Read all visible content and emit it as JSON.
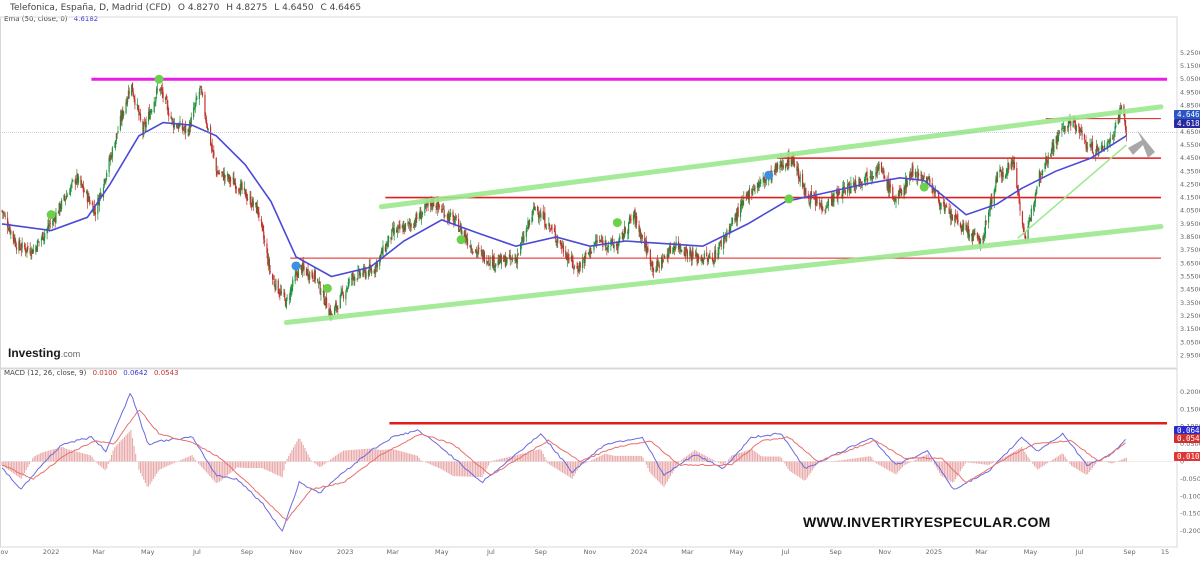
{
  "header": {
    "symbol": "Telefonica, España, D, Madrid (CFD)",
    "open": "O 4.8270",
    "high": "H 4.8275",
    "low": "L 4.6450",
    "close": "C 4.6465",
    "ema_label": "Ema (50, close, 0)",
    "ema_value": "4.6182"
  },
  "macd_header": {
    "label": "MACD (12, 26, close, 9)",
    "hist_value": "0.0100",
    "macd_value": "0.0642",
    "signal_value": "0.0543"
  },
  "brand": {
    "name": "Investing",
    "suffix": ".com"
  },
  "watermark": "WWW.INVERTIRYESPECULAR.COM",
  "price_badges": {
    "last": "4.6465",
    "ema": "4.6182"
  },
  "macd_badges": {
    "macd": "0.0642",
    "signal": "0.0543",
    "hist": "0.0100"
  },
  "colors": {
    "candle_up": "#1e8f3a",
    "candle_down": "#c0312b",
    "ema": "#4a4ad8",
    "channel": "#9be88e",
    "resistance": "#e01e1e",
    "top_line": "#e81ee8",
    "arrow": "#a8a8a8",
    "signal_marker": "#6bd14a",
    "signal_marker_blue": "#3d8fe0",
    "macd_line": "#6b6be0",
    "signal_line": "#e87070",
    "hist_pos": "#e8a8a8",
    "hist_neg": "#e8a8a8",
    "macd_resistance": "#e01e1e"
  },
  "chart_data": [
    {
      "type": "candlestick",
      "title": "Telefonica, España, D, Madrid (CFD)",
      "x_axis": {
        "type": "date",
        "range": [
          "2021-11-01",
          "2025-10-15"
        ],
        "tick_labels": [
          "Nov",
          "2022",
          "Mar",
          "May",
          "Jul",
          "Sep",
          "Nov",
          "2023",
          "Mar",
          "May",
          "Jul",
          "Sep",
          "Nov",
          "2024",
          "Mar",
          "May",
          "Jul",
          "Sep",
          "Nov",
          "2025",
          "Mar",
          "May",
          "Jul",
          "Sep",
          "15"
        ]
      },
      "y_axis": {
        "range": [
          2.9,
          5.5
        ],
        "tick_labels": [
          "5.2500",
          "5.1500",
          "5.0500",
          "4.9500",
          "4.8500",
          "4.7500",
          "4.6500",
          "4.5500",
          "4.4500",
          "4.3500",
          "4.2500",
          "4.1500",
          "4.0500",
          "3.9500",
          "3.8500",
          "3.7500",
          "3.6500",
          "3.5500",
          "3.4500",
          "3.3500",
          "3.2500",
          "3.1500",
          "3.0500",
          "2.9500"
        ]
      },
      "price_path": [
        [
          "2021-11-01",
          4.05
        ],
        [
          "2021-11-20",
          3.78
        ],
        [
          "2021-12-10",
          3.75
        ],
        [
          "2022-01-05",
          4.0
        ],
        [
          "2022-02-01",
          4.3
        ],
        [
          "2022-02-25",
          4.05
        ],
        [
          "2022-03-20",
          4.55
        ],
        [
          "2022-04-10",
          5.02
        ],
        [
          "2022-04-25",
          4.65
        ],
        [
          "2022-05-15",
          5.0
        ],
        [
          "2022-06-01",
          4.72
        ],
        [
          "2022-06-20",
          4.65
        ],
        [
          "2022-07-05",
          4.98
        ],
        [
          "2022-07-25",
          4.35
        ],
        [
          "2022-08-20",
          4.25
        ],
        [
          "2022-09-15",
          4.05
        ],
        [
          "2022-10-01",
          3.55
        ],
        [
          "2022-10-20",
          3.35
        ],
        [
          "2022-11-05",
          3.62
        ],
        [
          "2022-11-25",
          3.55
        ],
        [
          "2022-12-15",
          3.25
        ],
        [
          "2023-01-10",
          3.55
        ],
        [
          "2023-02-05",
          3.6
        ],
        [
          "2023-03-01",
          3.88
        ],
        [
          "2023-03-25",
          3.95
        ],
        [
          "2023-04-20",
          4.12
        ],
        [
          "2023-05-20",
          3.95
        ],
        [
          "2023-06-10",
          3.75
        ],
        [
          "2023-07-05",
          3.66
        ],
        [
          "2023-08-01",
          3.68
        ],
        [
          "2023-08-25",
          4.08
        ],
        [
          "2023-09-20",
          3.85
        ],
        [
          "2023-10-15",
          3.6
        ],
        [
          "2023-11-10",
          3.82
        ],
        [
          "2023-12-05",
          3.78
        ],
        [
          "2023-12-25",
          4.02
        ],
        [
          "2024-01-20",
          3.6
        ],
        [
          "2024-02-15",
          3.8
        ],
        [
          "2024-03-10",
          3.7
        ],
        [
          "2024-04-01",
          3.68
        ],
        [
          "2024-04-25",
          3.95
        ],
        [
          "2024-05-20",
          4.22
        ],
        [
          "2024-06-10",
          4.3
        ],
        [
          "2024-06-25",
          4.4
        ],
        [
          "2024-07-10",
          4.45
        ],
        [
          "2024-07-25",
          4.18
        ],
        [
          "2024-08-15",
          4.08
        ],
        [
          "2024-09-10",
          4.2
        ],
        [
          "2024-10-05",
          4.3
        ],
        [
          "2024-10-25",
          4.38
        ],
        [
          "2024-11-15",
          4.12
        ],
        [
          "2024-12-05",
          4.35
        ],
        [
          "2024-12-25",
          4.28
        ],
        [
          "2025-01-15",
          4.05
        ],
        [
          "2025-02-10",
          3.9
        ],
        [
          "2025-03-01",
          3.8
        ],
        [
          "2025-03-20",
          4.3
        ],
        [
          "2025-04-10",
          4.42
        ],
        [
          "2025-04-25",
          3.8
        ],
        [
          "2025-05-10",
          4.3
        ],
        [
          "2025-05-25",
          4.5
        ],
        [
          "2025-06-10",
          4.68
        ],
        [
          "2025-06-25",
          4.72
        ],
        [
          "2025-07-10",
          4.55
        ],
        [
          "2025-07-25",
          4.5
        ],
        [
          "2025-08-10",
          4.6
        ],
        [
          "2025-08-22",
          4.86
        ],
        [
          "2025-08-28",
          4.65
        ]
      ],
      "ema_path": [
        [
          "2021-11-01",
          3.95
        ],
        [
          "2022-01-01",
          3.9
        ],
        [
          "2022-02-15",
          4.0
        ],
        [
          "2022-03-15",
          4.25
        ],
        [
          "2022-04-20",
          4.62
        ],
        [
          "2022-05-20",
          4.72
        ],
        [
          "2022-06-25",
          4.7
        ],
        [
          "2022-07-25",
          4.62
        ],
        [
          "2022-08-30",
          4.4
        ],
        [
          "2022-10-01",
          4.12
        ],
        [
          "2022-11-01",
          3.7
        ],
        [
          "2022-12-15",
          3.55
        ],
        [
          "2023-02-01",
          3.62
        ],
        [
          "2023-03-15",
          3.82
        ],
        [
          "2023-05-01",
          3.98
        ],
        [
          "2023-06-15",
          3.88
        ],
        [
          "2023-08-01",
          3.78
        ],
        [
          "2023-09-20",
          3.85
        ],
        [
          "2023-11-01",
          3.78
        ],
        [
          "2023-12-15",
          3.82
        ],
        [
          "2024-02-01",
          3.8
        ],
        [
          "2024-03-20",
          3.78
        ],
        [
          "2024-05-15",
          3.95
        ],
        [
          "2024-07-01",
          4.12
        ],
        [
          "2024-08-15",
          4.18
        ],
        [
          "2024-10-05",
          4.25
        ],
        [
          "2024-11-20",
          4.3
        ],
        [
          "2024-12-20",
          4.28
        ],
        [
          "2025-02-10",
          4.02
        ],
        [
          "2025-03-20",
          4.1
        ],
        [
          "2025-04-20",
          4.22
        ],
        [
          "2025-06-01",
          4.35
        ],
        [
          "2025-07-15",
          4.45
        ],
        [
          "2025-08-28",
          4.62
        ]
      ],
      "annotations": {
        "top_line_level": 5.05,
        "resistance_levels": [
          4.45,
          4.15,
          3.69,
          4.75
        ],
        "channel_upper": [
          [
            "2023-02-15",
            4.08
          ],
          [
            "2025-10-10",
            4.84
          ]
        ],
        "channel_lower": [
          [
            "2022-10-20",
            3.2
          ],
          [
            "2025-10-10",
            3.93
          ]
        ],
        "support_trend": [
          [
            "2025-04-15",
            3.84
          ],
          [
            "2025-08-28",
            4.55
          ]
        ],
        "signal_markers": [
          [
            "2022-01-01",
            4.02,
            "B"
          ],
          [
            "2022-05-15",
            5.05,
            "B"
          ],
          [
            "2022-11-01",
            3.63,
            "P"
          ],
          [
            "2022-12-10",
            3.46,
            "B"
          ],
          [
            "2023-05-25",
            3.83,
            "B"
          ],
          [
            "2023-12-05",
            3.96,
            "B"
          ],
          [
            "2024-06-10",
            4.32,
            "P"
          ],
          [
            "2024-07-05",
            4.14,
            "B"
          ],
          [
            "2024-12-20",
            4.23,
            "B"
          ]
        ]
      }
    },
    {
      "type": "line",
      "title": "MACD (12, 26, close, 9)",
      "y_axis": {
        "range": [
          -0.24,
          0.24
        ],
        "tick_labels": [
          "0.2000",
          "0.1500",
          "0.1000",
          "0.0500",
          "0",
          "-0.0500",
          "-0.1000",
          "-0.1500",
          "-0.2000"
        ]
      },
      "series": [
        {
          "name": "MACD",
          "values": [
            [
              "2021-11-01",
              -0.02
            ],
            [
              "2021-11-25",
              -0.08
            ],
            [
              "2021-12-20",
              -0.01
            ],
            [
              "2022-01-15",
              0.05
            ],
            [
              "2022-02-20",
              0.07
            ],
            [
              "2022-03-10",
              0.03
            ],
            [
              "2022-04-10",
              0.2
            ],
            [
              "2022-05-01",
              0.05
            ],
            [
              "2022-05-20",
              0.06
            ],
            [
              "2022-06-25",
              0.07
            ],
            [
              "2022-07-25",
              -0.04
            ],
            [
              "2022-08-20",
              -0.05
            ],
            [
              "2022-09-20",
              -0.12
            ],
            [
              "2022-10-15",
              -0.2
            ],
            [
              "2022-11-05",
              -0.06
            ],
            [
              "2022-12-01",
              -0.09
            ],
            [
              "2022-12-20",
              -0.05
            ],
            [
              "2023-02-01",
              0.03
            ],
            [
              "2023-03-01",
              0.07
            ],
            [
              "2023-04-01",
              0.09
            ],
            [
              "2023-05-01",
              0.04
            ],
            [
              "2023-06-20",
              -0.06
            ],
            [
              "2023-08-01",
              0.02
            ],
            [
              "2023-09-01",
              0.08
            ],
            [
              "2023-10-10",
              -0.03
            ],
            [
              "2023-11-20",
              0.05
            ],
            [
              "2024-01-05",
              0.07
            ],
            [
              "2024-02-01",
              -0.04
            ],
            [
              "2024-03-10",
              0.02
            ],
            [
              "2024-04-15",
              -0.02
            ],
            [
              "2024-05-20",
              0.07
            ],
            [
              "2024-06-25",
              0.08
            ],
            [
              "2024-07-25",
              -0.02
            ],
            [
              "2024-09-10",
              0.03
            ],
            [
              "2024-10-15",
              0.07
            ],
            [
              "2024-11-15",
              -0.01
            ],
            [
              "2024-12-25",
              0.03
            ],
            [
              "2025-01-25",
              -0.08
            ],
            [
              "2025-03-10",
              -0.03
            ],
            [
              "2025-04-20",
              0.07
            ],
            [
              "2025-05-10",
              0.03
            ],
            [
              "2025-06-10",
              0.08
            ],
            [
              "2025-07-10",
              -0.01
            ],
            [
              "2025-08-10",
              0.02
            ],
            [
              "2025-08-28",
              0.064
            ]
          ]
        },
        {
          "name": "Signal",
          "values": [
            [
              "2021-11-01",
              -0.01
            ],
            [
              "2021-12-10",
              -0.05
            ],
            [
              "2022-01-20",
              0.02
            ],
            [
              "2022-02-25",
              0.06
            ],
            [
              "2022-03-20",
              0.05
            ],
            [
              "2022-04-20",
              0.15
            ],
            [
              "2022-05-15",
              0.08
            ],
            [
              "2022-06-30",
              0.05
            ],
            [
              "2022-07-30",
              0.01
            ],
            [
              "2022-09-01",
              -0.06
            ],
            [
              "2022-10-20",
              -0.17
            ],
            [
              "2022-11-20",
              -0.08
            ],
            [
              "2022-12-30",
              -0.06
            ],
            [
              "2023-02-15",
              0.02
            ],
            [
              "2023-04-05",
              0.08
            ],
            [
              "2023-05-15",
              0.05
            ],
            [
              "2023-07-01",
              -0.04
            ],
            [
              "2023-09-10",
              0.06
            ],
            [
              "2023-10-20",
              0.0
            ],
            [
              "2023-12-01",
              0.04
            ],
            [
              "2024-01-15",
              0.06
            ],
            [
              "2024-02-20",
              -0.01
            ],
            [
              "2024-04-25",
              -0.01
            ],
            [
              "2024-06-01",
              0.06
            ],
            [
              "2024-07-05",
              0.07
            ],
            [
              "2024-08-10",
              0.0
            ],
            [
              "2024-10-20",
              0.06
            ],
            [
              "2024-11-25",
              0.01
            ],
            [
              "2025-01-10",
              0.01
            ],
            [
              "2025-02-10",
              -0.06
            ],
            [
              "2025-04-01",
              0.01
            ],
            [
              "2025-05-05",
              0.05
            ],
            [
              "2025-06-20",
              0.06
            ],
            [
              "2025-07-25",
              0.0
            ],
            [
              "2025-08-28",
              0.054
            ]
          ]
        }
      ],
      "resistance_level": 0.11,
      "resistance_start": "2023-02-25"
    }
  ]
}
